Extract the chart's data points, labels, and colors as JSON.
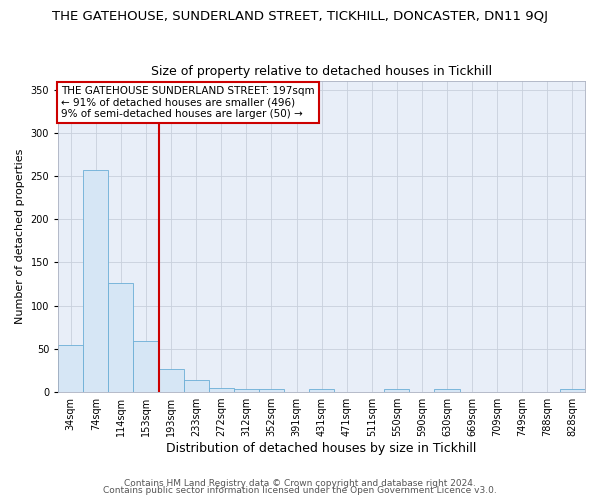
{
  "title": "THE GATEHOUSE, SUNDERLAND STREET, TICKHILL, DONCASTER, DN11 9QJ",
  "subtitle": "Size of property relative to detached houses in Tickhill",
  "xlabel": "Distribution of detached houses by size in Tickhill",
  "ylabel": "Number of detached properties",
  "bar_labels": [
    "34sqm",
    "74sqm",
    "114sqm",
    "153sqm",
    "193sqm",
    "233sqm",
    "272sqm",
    "312sqm",
    "352sqm",
    "391sqm",
    "431sqm",
    "471sqm",
    "511sqm",
    "550sqm",
    "590sqm",
    "630sqm",
    "669sqm",
    "709sqm",
    "749sqm",
    "788sqm",
    "828sqm"
  ],
  "bar_values": [
    55,
    257,
    126,
    59,
    27,
    14,
    5,
    4,
    4,
    0,
    3,
    0,
    0,
    3,
    0,
    3,
    0,
    0,
    0,
    0,
    3
  ],
  "bar_color": "#d6e6f5",
  "bar_edge_color": "#6baed6",
  "ylim": [
    0,
    360
  ],
  "yticks": [
    0,
    50,
    100,
    150,
    200,
    250,
    300,
    350
  ],
  "vline_x_index": 4,
  "vline_color": "#cc0000",
  "annotation_lines": [
    "THE GATEHOUSE SUNDERLAND STREET: 197sqm",
    "← 91% of detached houses are smaller (496)",
    "9% of semi-detached houses are larger (50) →"
  ],
  "annotation_box_facecolor": "#ffffff",
  "annotation_box_edgecolor": "#cc0000",
  "footer_lines": [
    "Contains HM Land Registry data © Crown copyright and database right 2024.",
    "Contains public sector information licensed under the Open Government Licence v3.0."
  ],
  "fig_facecolor": "#ffffff",
  "plot_facecolor": "#e8eef8",
  "grid_color": "#c8d0dc",
  "title_fontsize": 9.5,
  "subtitle_fontsize": 9,
  "xlabel_fontsize": 9,
  "ylabel_fontsize": 8,
  "tick_fontsize": 7,
  "annotation_fontsize": 7.5,
  "footer_fontsize": 6.5
}
